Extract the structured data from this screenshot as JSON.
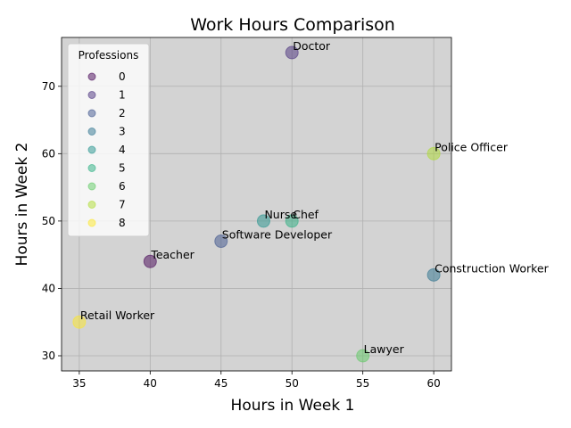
{
  "chart_data": {
    "type": "scatter",
    "title": "Work Hours Comparison",
    "xlabel": "Hours in Week 1",
    "ylabel": "Hours in Week 2",
    "xlim": [
      33.75,
      61.25
    ],
    "ylim": [
      27.75,
      77.25
    ],
    "xticks": [
      35,
      40,
      45,
      50,
      55,
      60
    ],
    "yticks": [
      30,
      40,
      50,
      60,
      70
    ],
    "grid": true,
    "background": "#d3d3d3",
    "legend": {
      "title": "Professions",
      "placement": "upper-left",
      "entries": [
        "0",
        "1",
        "2",
        "3",
        "4",
        "5",
        "6",
        "7",
        "8"
      ],
      "colors": [
        "#440154",
        "#472d7b",
        "#3b528b",
        "#2c728e",
        "#21918c",
        "#28ae80",
        "#5ec962",
        "#addc30",
        "#fde725"
      ]
    },
    "points": [
      {
        "label": "Teacher",
        "x": 40,
        "y": 44,
        "category": 0
      },
      {
        "label": "Doctor",
        "x": 50,
        "y": 75,
        "category": 1
      },
      {
        "label": "Software Developer",
        "x": 45,
        "y": 47,
        "category": 2
      },
      {
        "label": "Construction Worker",
        "x": 60,
        "y": 42,
        "category": 3
      },
      {
        "label": "Nurse",
        "x": 48,
        "y": 50,
        "category": 4
      },
      {
        "label": "Chef",
        "x": 50,
        "y": 50,
        "category": 5
      },
      {
        "label": "Lawyer",
        "x": 55,
        "y": 30,
        "category": 6
      },
      {
        "label": "Police Officer",
        "x": 60,
        "y": 60,
        "category": 7
      },
      {
        "label": "Retail Worker",
        "x": 35,
        "y": 35,
        "category": 8
      }
    ]
  }
}
